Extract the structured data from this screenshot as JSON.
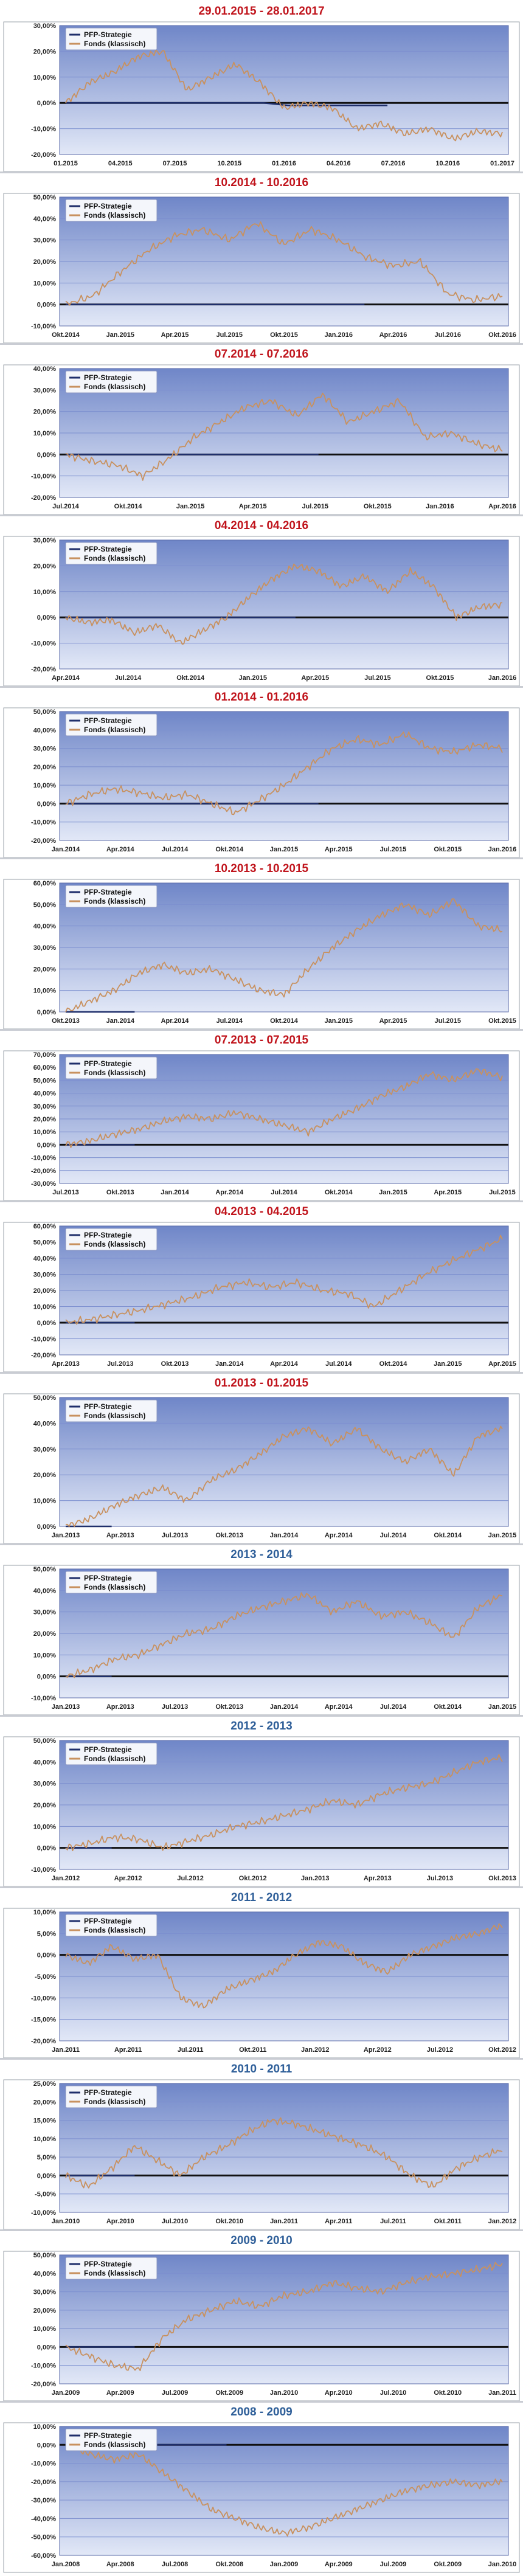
{
  "colors": {
    "title_red": "#c0141c",
    "title_blue": "#2f5f99",
    "plot_top": "#6f86c8",
    "plot_bottom": "#e2e8f7",
    "grid": "#7c8fcf",
    "border": "#9aa0aa",
    "series_strategy": "#1f2f6b",
    "series_fund": "#c8915f",
    "baseline": "#111111"
  },
  "legend": {
    "strategy": "PFP-Strategie",
    "fund": "Fonds (klassisch)"
  },
  "chart_data": [
    {
      "type": "line",
      "title": "29.01.2015 - 28.01.2017",
      "title_color": "red",
      "ylim": [
        -20,
        30
      ],
      "y_ticks": [
        "-20,00%",
        "-10,00%",
        "0,00%",
        "10,00%",
        "20,00%",
        "30,00%"
      ],
      "x_ticks": [
        "01.2015",
        "04.2015",
        "07.2015",
        "10.2015",
        "01.2016",
        "04.2016",
        "07.2016",
        "10.2016",
        "01.2017"
      ],
      "grid": true,
      "legend_position": "top-left",
      "series": [
        {
          "name": "PFP-Strategie",
          "values": [
            0,
            0,
            0,
            0,
            0,
            0,
            0,
            0,
            0,
            -1,
            -1,
            -1,
            -1,
            -1
          ]
        },
        {
          "name": "Fonds (klassisch)",
          "values": [
            0,
            8,
            12,
            18,
            20,
            5,
            10,
            15,
            8,
            -2,
            0,
            -2,
            -10,
            -8,
            -12,
            -10,
            -14,
            -11,
            -12
          ]
        }
      ]
    },
    {
      "type": "line",
      "title": "10.2014 - 10.2016",
      "title_color": "red",
      "ylim": [
        -10,
        50
      ],
      "y_ticks": [
        "-10,00%",
        "0,00%",
        "10,00%",
        "20,00%",
        "30,00%",
        "40,00%",
        "50,00%"
      ],
      "x_ticks": [
        "Okt.2014",
        "Jan.2015",
        "Apr.2015",
        "Jul.2015",
        "Okt.2015",
        "Jan.2016",
        "Apr.2016",
        "Jul.2016",
        "Okt.2016"
      ],
      "grid": true,
      "legend_position": "top-left",
      "series": [
        {
          "name": "PFP-Strategie",
          "values": [
            0,
            0,
            0,
            0,
            0,
            0,
            0,
            0,
            0,
            0,
            0,
            0,
            0
          ]
        },
        {
          "name": "Fonds (klassisch)",
          "values": [
            0,
            4,
            15,
            25,
            32,
            35,
            30,
            38,
            28,
            35,
            30,
            22,
            18,
            20,
            5,
            2,
            4
          ]
        }
      ]
    },
    {
      "type": "line",
      "title": "07.2014 - 07.2016",
      "title_color": "red",
      "ylim": [
        -20,
        40
      ],
      "y_ticks": [
        "-20,00%",
        "-10,00%",
        "0,00%",
        "10,00%",
        "20,00%",
        "30,00%",
        "40,00%"
      ],
      "x_ticks": [
        "Jul.2014",
        "Okt.2014",
        "Jan.2015",
        "Apr.2015",
        "Jul.2015",
        "Okt.2015",
        "Jan.2016",
        "Apr.2016"
      ],
      "grid": true,
      "legend_position": "top-left",
      "series": [
        {
          "name": "PFP-Strategie",
          "values": [
            0,
            0,
            0,
            0,
            0,
            0,
            0,
            0,
            0,
            0,
            0
          ]
        },
        {
          "name": "Fonds (klassisch)",
          "values": [
            0,
            -3,
            -5,
            -10,
            -2,
            8,
            15,
            22,
            25,
            18,
            28,
            15,
            20,
            25,
            8,
            10,
            5,
            2
          ]
        }
      ]
    },
    {
      "type": "line",
      "title": "04.2014 - 04.2016",
      "title_color": "red",
      "ylim": [
        -20,
        30
      ],
      "y_ticks": [
        "-20,00%",
        "-10,00%",
        "0,00%",
        "10,00%",
        "20,00%",
        "30,00%"
      ],
      "x_ticks": [
        "Apr.2014",
        "Jul.2014",
        "Okt.2014",
        "Jan.2015",
        "Apr.2015",
        "Jul.2015",
        "Okt.2015",
        "Jan.2016"
      ],
      "grid": true,
      "legend_position": "top-left",
      "series": [
        {
          "name": "PFP-Strategie",
          "values": [
            0,
            0,
            0,
            0,
            0,
            0,
            0,
            0,
            0,
            0
          ]
        },
        {
          "name": "Fonds (klassisch)",
          "values": [
            0,
            -2,
            -1,
            -6,
            -3,
            -10,
            -5,
            0,
            8,
            15,
            20,
            18,
            12,
            16,
            10,
            18,
            12,
            0,
            4,
            5
          ]
        }
      ]
    },
    {
      "type": "line",
      "title": "01.2014 - 01.2016",
      "title_color": "red",
      "ylim": [
        -20,
        50
      ],
      "y_ticks": [
        "-20,00%",
        "-10,00%",
        "0,00%",
        "10,00%",
        "20,00%",
        "30,00%",
        "40,00%",
        "50,00%"
      ],
      "x_ticks": [
        "Jan.2014",
        "Apr.2014",
        "Jul.2014",
        "Okt.2014",
        "Jan.2015",
        "Apr.2015",
        "Jul.2015",
        "Okt.2015",
        "Jan.2016"
      ],
      "grid": true,
      "legend_position": "top-left",
      "series": [
        {
          "name": "PFP-Strategie",
          "values": [
            0,
            0,
            0,
            0,
            0,
            0,
            0,
            0,
            0,
            0,
            0
          ]
        },
        {
          "name": "Fonds (klassisch)",
          "values": [
            0,
            5,
            8,
            6,
            3,
            5,
            0,
            -5,
            2,
            10,
            20,
            30,
            35,
            32,
            38,
            30,
            28,
            32,
            30
          ]
        }
      ]
    },
    {
      "type": "line",
      "title": "10.2013 - 10.2015",
      "title_color": "red",
      "ylim": [
        0,
        60
      ],
      "y_ticks": [
        "0,00%",
        "10,00%",
        "20,00%",
        "30,00%",
        "40,00%",
        "50,00%",
        "60,00%"
      ],
      "x_ticks": [
        "Okt.2013",
        "Jan.2014",
        "Apr.2014",
        "Jul.2014",
        "Okt.2014",
        "Jan.2015",
        "Apr.2015",
        "Jul.2015",
        "Okt.2015"
      ],
      "grid": true,
      "legend_position": "top-left",
      "series": [
        {
          "name": "PFP-Strategie",
          "values": [
            0,
            0,
            0
          ]
        },
        {
          "name": "Fonds (klassisch)",
          "values": [
            0,
            5,
            10,
            18,
            22,
            18,
            20,
            15,
            10,
            8,
            20,
            30,
            38,
            45,
            50,
            45,
            52,
            40,
            38
          ]
        }
      ]
    },
    {
      "type": "line",
      "title": "07.2013 - 07.2015",
      "title_color": "red",
      "ylim": [
        -30,
        70
      ],
      "y_ticks": [
        "-30,00%",
        "-20,00%",
        "-10,00%",
        "0,00%",
        "10,00%",
        "20,00%",
        "30,00%",
        "40,00%",
        "50,00%",
        "60,00%",
        "70,00%"
      ],
      "x_ticks": [
        "Jul.2013",
        "Okt.2013",
        "Jan.2014",
        "Apr.2014",
        "Jul.2014",
        "Okt.2014",
        "Jan.2015",
        "Apr.2015",
        "Jul.2015"
      ],
      "grid": true,
      "legend_position": "top-left",
      "series": [
        {
          "name": "PFP-Strategie",
          "values": [
            0,
            0,
            0
          ]
        },
        {
          "name": "Fonds (klassisch)",
          "values": [
            0,
            3,
            8,
            12,
            18,
            22,
            20,
            25,
            20,
            15,
            10,
            20,
            28,
            38,
            45,
            55,
            50,
            58,
            52
          ]
        }
      ]
    },
    {
      "type": "line",
      "title": "04.2013 - 04.2015",
      "title_color": "red",
      "ylim": [
        -20,
        60
      ],
      "y_ticks": [
        "-20,00%",
        "-10,00%",
        "0,00%",
        "10,00%",
        "20,00%",
        "30,00%",
        "40,00%",
        "50,00%",
        "60,00%"
      ],
      "x_ticks": [
        "Apr.2013",
        "Jul.2013",
        "Okt.2013",
        "Jan.2014",
        "Apr.2014",
        "Jul.2014",
        "Okt.2014",
        "Jan.2015",
        "Apr.2015"
      ],
      "grid": true,
      "legend_position": "top-left",
      "series": [
        {
          "name": "PFP-Strategie",
          "values": [
            0,
            0,
            0
          ]
        },
        {
          "name": "Fonds (klassisch)",
          "values": [
            0,
            2,
            5,
            8,
            12,
            16,
            22,
            25,
            22,
            25,
            20,
            18,
            10,
            20,
            30,
            38,
            45,
            52
          ]
        }
      ]
    },
    {
      "type": "line",
      "title": "01.2013 - 01.2015",
      "title_color": "red",
      "ylim": [
        0,
        50
      ],
      "y_ticks": [
        "0,00%",
        "10,00%",
        "20,00%",
        "30,00%",
        "40,00%",
        "50,00%"
      ],
      "x_ticks": [
        "Jan.2013",
        "Apr.2013",
        "Jul.2013",
        "Okt.2013",
        "Jan.2014",
        "Apr.2014",
        "Jul.2014",
        "Okt.2014",
        "Jan.2015"
      ],
      "grid": true,
      "legend_position": "top-left",
      "series": [
        {
          "name": "PFP-Strategie",
          "values": [
            0,
            0
          ]
        },
        {
          "name": "Fonds (klassisch)",
          "values": [
            0,
            3,
            8,
            12,
            15,
            10,
            18,
            22,
            28,
            35,
            38,
            32,
            38,
            30,
            25,
            30,
            20,
            35,
            38
          ]
        }
      ]
    },
    {
      "type": "line",
      "title": "2013 - 2014",
      "title_color": "blue",
      "ylim": [
        -10,
        50
      ],
      "y_ticks": [
        "-10,00%",
        "0,00%",
        "10,00%",
        "20,00%",
        "30,00%",
        "40,00%",
        "50,00%"
      ],
      "x_ticks": [
        "Jan.2013",
        "Apr.2013",
        "Jul.2013",
        "Okt.2013",
        "Jan.2014",
        "Apr.2014",
        "Jul.2014",
        "Okt.2014",
        "Jan.2015"
      ],
      "grid": true,
      "legend_position": "top-left",
      "series": [
        {
          "name": "PFP-Strategie",
          "values": [
            0,
            0
          ]
        },
        {
          "name": "Fonds (klassisch)",
          "values": [
            0,
            3,
            8,
            10,
            15,
            20,
            22,
            28,
            32,
            35,
            38,
            30,
            35,
            28,
            30,
            25,
            18,
            32,
            38
          ]
        }
      ]
    },
    {
      "type": "line",
      "title": "2012 - 2013",
      "title_color": "blue",
      "ylim": [
        -10,
        50
      ],
      "y_ticks": [
        "-10,00%",
        "0,00%",
        "10,00%",
        "20,00%",
        "30,00%",
        "40,00%",
        "50,00%"
      ],
      "x_ticks": [
        "Jan.2012",
        "Apr.2012",
        "Jul.2012",
        "Okt.2012",
        "Jan.2013",
        "Apr.2013",
        "Jul.2013",
        "Okt.2013"
      ],
      "grid": true,
      "legend_position": "top-left",
      "series": [
        {
          "name": "PFP-Strategie",
          "values": [
            0,
            0
          ]
        },
        {
          "name": "Fonds (klassisch)",
          "values": [
            0,
            2,
            5,
            4,
            0,
            3,
            6,
            10,
            12,
            15,
            18,
            22,
            20,
            25,
            28,
            30,
            35,
            40,
            42
          ]
        }
      ]
    },
    {
      "type": "line",
      "title": "2011 - 2012",
      "title_color": "blue",
      "ylim": [
        -20,
        10
      ],
      "y_ticks": [
        "-20,00%",
        "-15,00%",
        "-10,00%",
        "-5,00%",
        "0,00%",
        "5,00%",
        "10,00%"
      ],
      "x_ticks": [
        "Jan.2011",
        "Apr.2011",
        "Jul.2011",
        "Okt.2011",
        "Jan.2012",
        "Apr.2012",
        "Jul.2012",
        "Okt.2012"
      ],
      "grid": true,
      "legend_position": "top-left",
      "series": [
        {
          "name": "PFP-Strategie",
          "values": [
            0,
            0,
            0,
            0
          ]
        },
        {
          "name": "Fonds (klassisch)",
          "values": [
            0,
            -2,
            2,
            -1,
            0,
            -10,
            -12,
            -8,
            -6,
            -4,
            0,
            3,
            2,
            -2,
            -4,
            0,
            2,
            4,
            5,
            7
          ]
        }
      ]
    },
    {
      "type": "line",
      "title": "2010 - 2011",
      "title_color": "blue",
      "ylim": [
        -10,
        25
      ],
      "y_ticks": [
        "-10,00%",
        "-5,00%",
        "0,00%",
        "5,00%",
        "10,00%",
        "15,00%",
        "20,00%",
        "25,00%"
      ],
      "x_ticks": [
        "Jan.2010",
        "Apr.2010",
        "Jul.2010",
        "Okt.2010",
        "Jan.2011",
        "Apr.2011",
        "Jul.2011",
        "Okt.2011",
        "Jan.2012"
      ],
      "grid": true,
      "legend_position": "top-left",
      "series": [
        {
          "name": "PFP-Strategie",
          "values": [
            0,
            0,
            0
          ]
        },
        {
          "name": "Fonds (klassisch)",
          "values": [
            0,
            -3,
            2,
            8,
            4,
            0,
            5,
            8,
            12,
            15,
            14,
            12,
            10,
            8,
            5,
            0,
            -3,
            2,
            5,
            7
          ]
        }
      ]
    },
    {
      "type": "line",
      "title": "2009 - 2010",
      "title_color": "blue",
      "ylim": [
        -20,
        50
      ],
      "y_ticks": [
        "-20,00%",
        "-10,00%",
        "0,00%",
        "10,00%",
        "20,00%",
        "30,00%",
        "40,00%",
        "50,00%"
      ],
      "x_ticks": [
        "Jan.2009",
        "Apr.2009",
        "Jul.2009",
        "Okt.2009",
        "Jan.2010",
        "Apr.2010",
        "Jul.2010",
        "Okt.2010",
        "Jan.2011"
      ],
      "grid": true,
      "legend_position": "top-left",
      "series": [
        {
          "name": "PFP-Strategie",
          "values": [
            0,
            0,
            0
          ]
        },
        {
          "name": "Fonds (klassisch)",
          "values": [
            0,
            -5,
            -10,
            -12,
            5,
            15,
            20,
            25,
            22,
            28,
            30,
            35,
            32,
            30,
            35,
            38,
            40,
            42,
            45
          ]
        }
      ]
    },
    {
      "type": "line",
      "title": "2008 - 2009",
      "title_color": "blue",
      "ylim": [
        -60,
        10
      ],
      "y_ticks": [
        "-60,00%",
        "-50,00%",
        "-40,00%",
        "-30,00%",
        "-20,00%",
        "-10,00%",
        "0,00%",
        "10,00%"
      ],
      "x_ticks": [
        "Jan.2008",
        "Apr.2008",
        "Jul.2008",
        "Okt.2008",
        "Jan.2009",
        "Apr.2009",
        "Jul.2009",
        "Okt.2009",
        "Jan.2010"
      ],
      "grid": true,
      "legend_position": "top-left",
      "series": [
        {
          "name": "PFP-Strategie",
          "values": [
            0,
            0,
            0,
            0,
            0,
            0,
            0
          ]
        },
        {
          "name": "Fonds (klassisch)",
          "values": [
            0,
            -5,
            -8,
            -5,
            -15,
            -25,
            -35,
            -40,
            -45,
            -48,
            -45,
            -40,
            -35,
            -30,
            -25,
            -22,
            -20,
            -22,
            -20
          ]
        }
      ]
    }
  ]
}
